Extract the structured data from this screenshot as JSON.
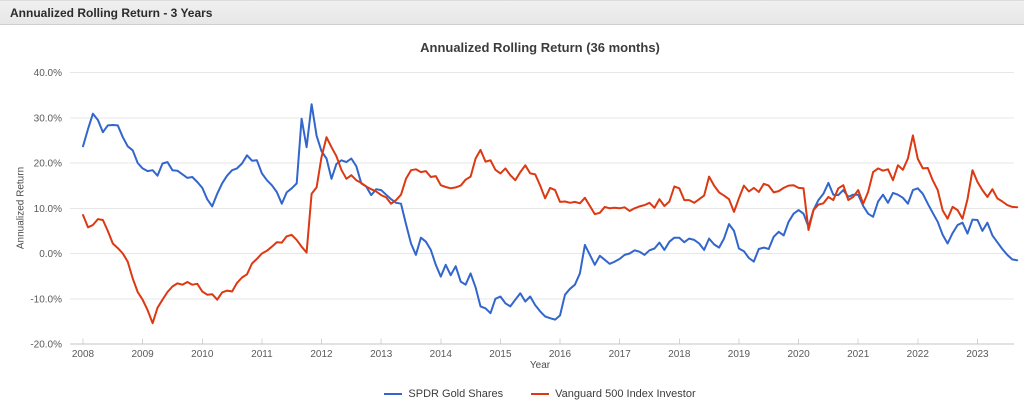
{
  "header": {
    "title": "Annualized Rolling Return - 3 Years"
  },
  "chart_data": {
    "type": "line",
    "title": "Annualized Rolling Return (36 months)",
    "xlabel": "Year",
    "ylabel": "Annualized Return",
    "x_unit": "month",
    "x_start": "2008-01",
    "x_end": "2023-09",
    "ylim": [
      -20,
      40
    ],
    "grid": true,
    "legend_position": "bottom",
    "y_ticks": [
      {
        "v": 40,
        "label": "40.0%"
      },
      {
        "v": 30,
        "label": "30.0%"
      },
      {
        "v": 20,
        "label": "20.0%"
      },
      {
        "v": 10,
        "label": "10.0%"
      },
      {
        "v": 0,
        "label": "0.0%"
      },
      {
        "v": -10,
        "label": "-10.0%"
      },
      {
        "v": -20,
        "label": "-20.0%"
      }
    ],
    "x_ticks": [
      "2008",
      "2009",
      "2010",
      "2011",
      "2012",
      "2013",
      "2014",
      "2015",
      "2016",
      "2017",
      "2018",
      "2019",
      "2020",
      "2021",
      "2022",
      "2023"
    ],
    "series": [
      {
        "name": "SPDR Gold Shares",
        "color": "#3366cc",
        "values": [
          23.7,
          27.5,
          30.9,
          29.5,
          26.8,
          28.3,
          28.4,
          28.3,
          25.7,
          23.7,
          22.8,
          20.0,
          18.8,
          18.2,
          18.4,
          17.2,
          19.9,
          20.2,
          18.4,
          18.3,
          17.5,
          16.7,
          16.9,
          15.8,
          14.5,
          12.0,
          10.4,
          13.2,
          15.5,
          17.2,
          18.4,
          18.8,
          19.9,
          21.7,
          20.5,
          20.6,
          17.7,
          16.2,
          15.1,
          13.6,
          11.0,
          13.5,
          14.4,
          15.5,
          29.8,
          23.5,
          33.0,
          26.0,
          22.6,
          21.0,
          16.5,
          19.8,
          20.6,
          20.2,
          21.0,
          19.3,
          15.5,
          14.8,
          12.9,
          14.2,
          14.0,
          13.0,
          12.0,
          11.2,
          11.0,
          6.5,
          2.2,
          -0.3,
          3.5,
          2.6,
          0.8,
          -2.5,
          -5.1,
          -2.5,
          -4.8,
          -2.8,
          -6.2,
          -6.9,
          -4.4,
          -7.5,
          -11.7,
          -12.1,
          -13.2,
          -10.0,
          -9.5,
          -11.0,
          -11.7,
          -10.2,
          -8.8,
          -10.6,
          -9.5,
          -11.4,
          -12.8,
          -13.9,
          -14.3,
          -14.6,
          -13.7,
          -9.1,
          -7.8,
          -6.9,
          -4.4,
          1.9,
          -0.3,
          -2.5,
          -0.5,
          -1.4,
          -2.3,
          -1.8,
          -1.2,
          -0.3,
          0.0,
          0.7,
          0.4,
          -0.3,
          0.7,
          1.1,
          2.4,
          0.8,
          2.6,
          3.5,
          3.5,
          2.5,
          3.3,
          3.0,
          2.2,
          0.8,
          3.3,
          2.0,
          1.3,
          3.3,
          6.5,
          5.0,
          1.1,
          0.5,
          -1.0,
          -1.8,
          1.0,
          1.3,
          1.0,
          3.7,
          4.8,
          4.0,
          7.0,
          8.8,
          9.6,
          8.8,
          5.9,
          9.6,
          11.8,
          13.2,
          15.6,
          13.0,
          12.9,
          14.0,
          12.5,
          13.0,
          13.0,
          10.5,
          8.8,
          8.1,
          11.5,
          13.0,
          11.2,
          13.4,
          13.0,
          12.3,
          11.0,
          14.0,
          14.4,
          13.2,
          11.0,
          9.0,
          7.0,
          4.1,
          2.2,
          4.5,
          6.3,
          6.8,
          4.4,
          7.5,
          7.4,
          5.0,
          6.8,
          4.0,
          2.5,
          1.0,
          -0.3,
          -1.3,
          -1.5
        ]
      },
      {
        "name": "Vanguard 500 Index Investor",
        "color": "#dc3912",
        "values": [
          8.5,
          5.8,
          6.3,
          7.6,
          7.4,
          5.0,
          2.2,
          1.2,
          0.0,
          -1.8,
          -5.5,
          -8.5,
          -10.2,
          -12.5,
          -15.4,
          -12.0,
          -10.2,
          -8.5,
          -7.3,
          -6.6,
          -6.9,
          -6.3,
          -6.9,
          -6.7,
          -8.4,
          -9.1,
          -9.0,
          -10.2,
          -8.6,
          -8.2,
          -8.4,
          -6.5,
          -5.3,
          -4.6,
          -2.2,
          -1.2,
          0.0,
          0.6,
          1.5,
          2.5,
          2.4,
          3.8,
          4.1,
          3.0,
          1.5,
          0.2,
          13.2,
          14.6,
          21.3,
          25.7,
          23.5,
          21.5,
          18.5,
          16.5,
          17.3,
          16.2,
          15.6,
          14.8,
          14.2,
          13.7,
          12.9,
          12.4,
          11.0,
          11.8,
          13.0,
          16.5,
          18.4,
          18.6,
          18.0,
          18.2,
          16.9,
          17.1,
          15.1,
          14.7,
          14.4,
          14.6,
          15.0,
          16.3,
          17.0,
          21.0,
          22.9,
          20.3,
          20.6,
          18.5,
          17.7,
          18.8,
          17.3,
          16.2,
          18.0,
          19.5,
          17.7,
          17.5,
          15.0,
          12.2,
          14.5,
          14.0,
          11.4,
          11.5,
          11.2,
          11.4,
          11.1,
          12.3,
          10.5,
          8.7,
          9.0,
          10.3,
          10.0,
          10.1,
          10.0,
          10.2,
          9.4,
          10.0,
          10.4,
          10.7,
          11.2,
          10.1,
          12.0,
          10.5,
          11.5,
          14.8,
          14.4,
          11.8,
          11.8,
          11.2,
          12.0,
          12.8,
          17.0,
          15.0,
          13.5,
          12.8,
          12.0,
          9.2,
          12.2,
          15.0,
          13.7,
          14.5,
          13.6,
          15.4,
          15.0,
          13.5,
          13.8,
          14.5,
          15.0,
          15.1,
          14.5,
          14.4,
          5.2,
          9.6,
          10.8,
          11.1,
          12.5,
          11.8,
          14.4,
          15.1,
          11.8,
          12.5,
          14.0,
          11.0,
          13.6,
          18.0,
          18.8,
          18.3,
          18.6,
          16.2,
          19.5,
          18.5,
          21.0,
          26.1,
          20.9,
          18.8,
          18.9,
          16.2,
          14.0,
          9.5,
          7.7,
          10.3,
          9.6,
          7.7,
          12.0,
          18.4,
          15.8,
          14.0,
          12.5,
          14.2,
          12.2,
          11.5,
          10.7,
          10.3,
          10.2
        ]
      }
    ]
  }
}
